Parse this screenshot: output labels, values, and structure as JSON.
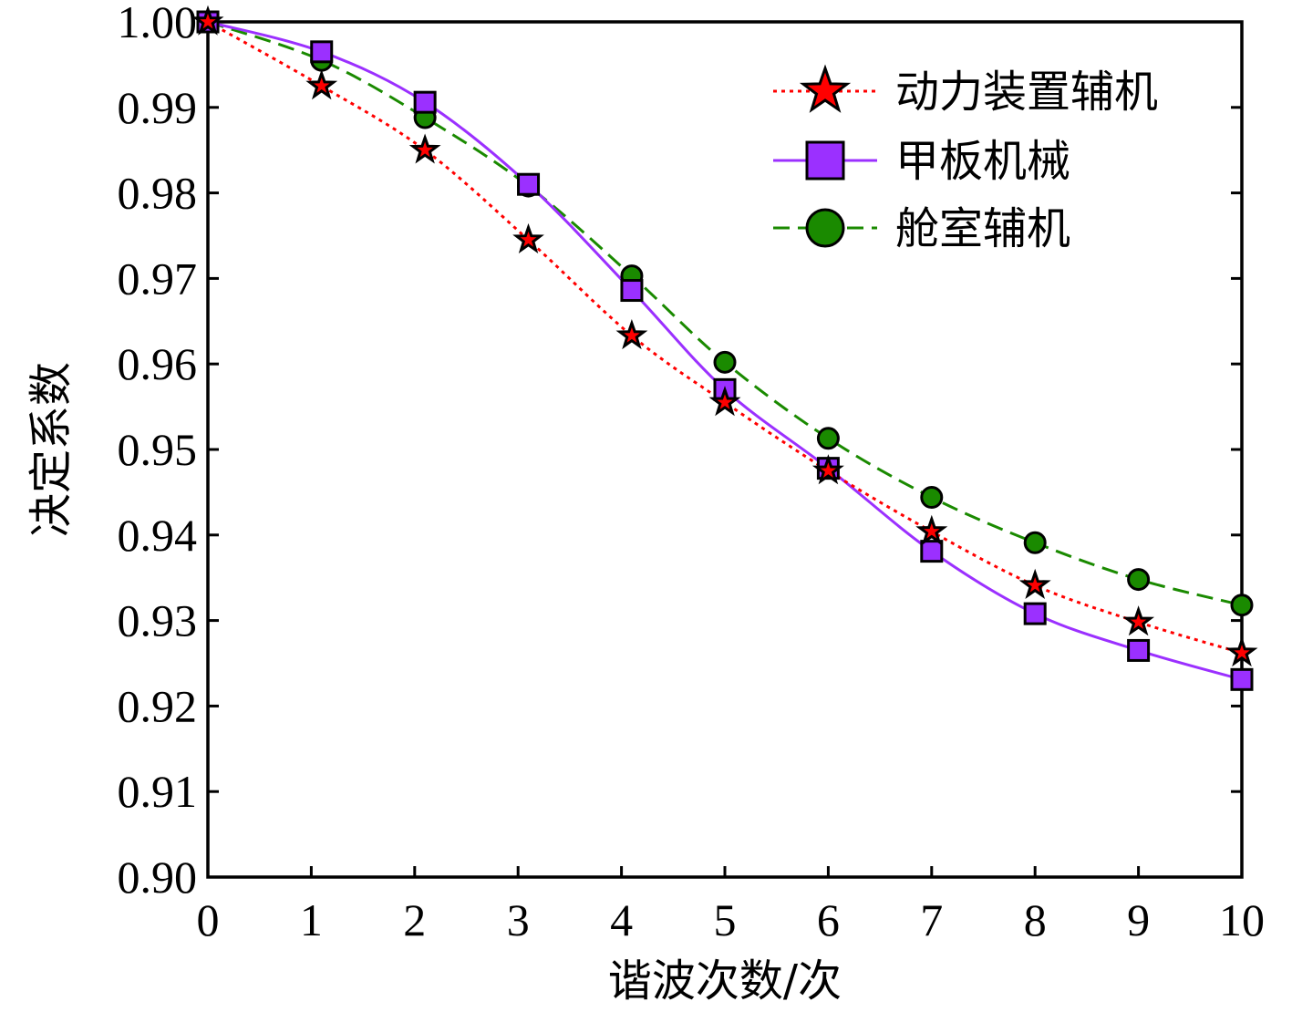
{
  "chart_data": {
    "type": "line",
    "title": "",
    "xlabel": "谐波次数/次",
    "ylabel": "决定系数",
    "xlim": [
      0,
      10
    ],
    "ylim": [
      0.9,
      1.0
    ],
    "x_ticks": [
      "0",
      "1",
      "2",
      "3",
      "4",
      "5",
      "6",
      "7",
      "8",
      "9",
      "10"
    ],
    "y_ticks": [
      "0.90",
      "0.91",
      "0.92",
      "0.93",
      "0.94",
      "0.95",
      "0.96",
      "0.97",
      "0.98",
      "0.99",
      "1.00"
    ],
    "legend_position": "top-right",
    "series": [
      {
        "name": "动力装置辅机",
        "color": "#ff0000",
        "line_style": "dotted",
        "marker": "star",
        "x": [
          0,
          1.1,
          2.1,
          3.1,
          4.1,
          5.0,
          6.0,
          7.0,
          8.0,
          9.0,
          10.0
        ],
        "values": [
          1.0,
          0.9925,
          0.985,
          0.9745,
          0.9633,
          0.9555,
          0.9475,
          0.9404,
          0.9341,
          0.9298,
          0.9262
        ]
      },
      {
        "name": "甲板机械",
        "color": "#9b30ff",
        "line_style": "solid",
        "marker": "square",
        "x": [
          0,
          1.1,
          2.1,
          3.1,
          4.1,
          5.0,
          6.0,
          7.0,
          8.0,
          9.0,
          10.0
        ],
        "values": [
          1.0,
          0.9965,
          0.9906,
          0.981,
          0.9686,
          0.957,
          0.9478,
          0.9381,
          0.9308,
          0.9265,
          0.9231
        ]
      },
      {
        "name": "舱室辅机",
        "color": "#1a8a00",
        "line_style": "dashed",
        "marker": "circle",
        "x": [
          0,
          1.1,
          2.1,
          3.1,
          4.1,
          5.0,
          6.0,
          7.0,
          8.0,
          9.0,
          10.0
        ],
        "values": [
          1.0,
          0.9955,
          0.9888,
          0.9808,
          0.9703,
          0.9602,
          0.9513,
          0.9444,
          0.9391,
          0.9348,
          0.9318
        ]
      }
    ]
  }
}
